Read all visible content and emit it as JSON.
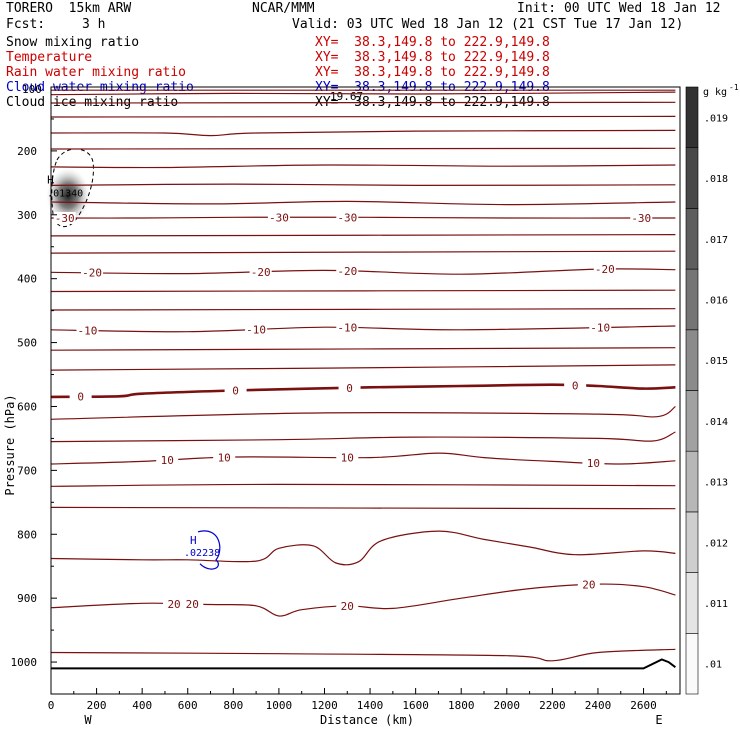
{
  "header": {
    "model": "TORERO  15km ARW",
    "center": "NCAR/MMM",
    "init": "Init: 00 UTC Wed 18 Jan 12",
    "fcst_label": "Fcst:",
    "fcst_value": "3 h",
    "valid": "Valid: 03 UTC Wed 18 Jan 12 (21 CST Tue 17 Jan 12)"
  },
  "fields": [
    {
      "name": "Snow mixing ratio",
      "xy": "XY=  38.3,149.8 to 222.9,149.8",
      "color": "#000000",
      "xy_color": "#cc0000"
    },
    {
      "name": "Temperature",
      "xy": "XY=  38.3,149.8 to 222.9,149.8",
      "color": "#cc0000",
      "xy_color": "#cc0000"
    },
    {
      "name": "Rain water mixing ratio",
      "xy": "XY=  38.3,149.8 to 222.9,149.8",
      "color": "#cc0000",
      "xy_color": "#cc0000"
    },
    {
      "name": "Cloud water mixing ratio",
      "xy": "XY=  38.3,149.8 to 222.9,149.8",
      "color": "#0000cc",
      "xy_color": "#0000cc"
    },
    {
      "name": "Cloud ice mixing ratio",
      "xy": "XY=  38.3,149.8 to 222.9,149.8",
      "color": "#000000",
      "xy_color": "#000000"
    }
  ],
  "overlap_text": {
    "left": "100",
    "right": "19.67"
  },
  "chart_data": {
    "type": "cross-section",
    "xlabel": "Distance (km)",
    "ylabel": "Pressure (hPa)",
    "xlim": [
      0,
      2760
    ],
    "ylim": [
      1050,
      100
    ],
    "xticks": [
      0,
      200,
      400,
      600,
      800,
      1000,
      1200,
      1400,
      1600,
      1800,
      2000,
      2200,
      2400,
      2600
    ],
    "xtick_labels": [
      "0",
      "200",
      "400",
      "600",
      "800",
      "1000",
      "1200",
      "1400",
      "1600",
      "1800",
      "2000",
      "2200",
      "2400",
      "2600"
    ],
    "yticks": [
      200,
      300,
      400,
      500,
      600,
      700,
      800,
      900,
      1000
    ],
    "ytick_labels": [
      "200",
      "300",
      "400",
      "500",
      "600",
      "700",
      "800",
      "900",
      "1000"
    ],
    "x_end_labels": [
      "W",
      "E"
    ],
    "colorbar": {
      "unit": "g kg",
      "unit_exp": "-1",
      "levels": [
        0.01,
        0.011,
        0.012,
        0.013,
        0.014,
        0.015,
        0.016,
        0.017,
        0.018,
        0.019
      ],
      "labels": [
        ".01",
        ".011",
        ".012",
        ".013",
        ".014",
        ".015",
        ".016",
        ".017",
        ".018",
        ".019"
      ]
    },
    "temperature_contours": [
      {
        "p": [
          [
            0,
            105
          ],
          [
            2740,
            105
          ]
        ]
      },
      {
        "p": [
          [
            0,
            112
          ],
          [
            800,
            110
          ],
          [
            1600,
            111
          ],
          [
            2740,
            108
          ]
        ]
      },
      {
        "p": [
          [
            0,
            125
          ],
          [
            2740,
            124
          ]
        ]
      },
      {
        "p": [
          [
            0,
            147
          ],
          [
            2740,
            146
          ]
        ]
      },
      {
        "p": [
          [
            0,
            172
          ],
          [
            500,
            172
          ],
          [
            700,
            176
          ],
          [
            900,
            172
          ],
          [
            1600,
            169
          ],
          [
            2740,
            168
          ]
        ]
      },
      {
        "p": [
          [
            0,
            197
          ],
          [
            2740,
            196
          ]
        ]
      },
      {
        "p": [
          [
            0,
            225
          ],
          [
            500,
            226
          ],
          [
            1200,
            222
          ],
          [
            2000,
            224
          ],
          [
            2740,
            222
          ]
        ]
      },
      {
        "p": [
          [
            0,
            254
          ],
          [
            800,
            252
          ],
          [
            1600,
            254
          ],
          [
            2740,
            253
          ]
        ]
      },
      {
        "p": [
          [
            0,
            280
          ],
          [
            700,
            283
          ],
          [
            1300,
            279
          ],
          [
            2000,
            284
          ],
          [
            2740,
            280
          ]
        ]
      },
      {
        "p": [
          [
            0,
            305
          ],
          [
            400,
            305
          ],
          [
            800,
            304
          ],
          [
            1400,
            304
          ],
          [
            2000,
            305
          ],
          [
            2740,
            305
          ]
        ],
        "label": "-30",
        "at": [
          60,
          1000,
          1300,
          2590
        ]
      },
      {
        "p": [
          [
            0,
            333
          ],
          [
            2740,
            331
          ]
        ]
      },
      {
        "p": [
          [
            0,
            360
          ],
          [
            2740,
            357
          ]
        ]
      },
      {
        "p": [
          [
            0,
            390
          ],
          [
            600,
            392
          ],
          [
            1200,
            387
          ],
          [
            1800,
            393
          ],
          [
            2400,
            385
          ],
          [
            2740,
            386
          ]
        ],
        "label": "-20",
        "at": [
          180,
          920,
          1300,
          2430
        ]
      },
      {
        "p": [
          [
            0,
            420
          ],
          [
            2740,
            418
          ]
        ]
      },
      {
        "p": [
          [
            0,
            449
          ],
          [
            2740,
            447
          ]
        ]
      },
      {
        "p": [
          [
            0,
            480
          ],
          [
            600,
            483
          ],
          [
            1200,
            476
          ],
          [
            1800,
            480
          ],
          [
            2740,
            474
          ]
        ],
        "label": "-10",
        "at": [
          160,
          900,
          1300,
          2410
        ]
      },
      {
        "p": [
          [
            0,
            512
          ],
          [
            2740,
            508
          ]
        ]
      },
      {
        "p": [
          [
            0,
            543
          ],
          [
            1200,
            540
          ],
          [
            2740,
            535
          ]
        ]
      },
      {
        "p": [
          [
            0,
            585
          ],
          [
            300,
            584
          ],
          [
            400,
            580
          ],
          [
            800,
            575
          ],
          [
            1400,
            570
          ],
          [
            1800,
            568
          ],
          [
            2200,
            566
          ],
          [
            2400,
            568
          ],
          [
            2600,
            572
          ],
          [
            2740,
            570
          ]
        ],
        "label": "0",
        "at": [
          130,
          810,
          1310,
          2300
        ],
        "bold": true
      },
      {
        "p": [
          [
            0,
            620
          ],
          [
            1200,
            610
          ],
          [
            2400,
            612
          ],
          [
            2660,
            616
          ],
          [
            2740,
            600
          ]
        ]
      },
      {
        "p": [
          [
            0,
            655
          ],
          [
            1000,
            652
          ],
          [
            1600,
            648
          ],
          [
            2400,
            650
          ],
          [
            2640,
            654
          ],
          [
            2740,
            640
          ]
        ]
      },
      {
        "p": [
          [
            0,
            690
          ],
          [
            400,
            686
          ],
          [
            800,
            679
          ],
          [
            1400,
            680
          ],
          [
            1700,
            673
          ],
          [
            1900,
            680
          ],
          [
            2200,
            686
          ],
          [
            2500,
            690
          ],
          [
            2740,
            685
          ]
        ],
        "label": "10",
        "at": [
          510,
          760,
          1300,
          2380
        ]
      },
      {
        "p": [
          [
            0,
            725
          ],
          [
            1000,
            722
          ],
          [
            2740,
            724
          ]
        ]
      },
      {
        "p": [
          [
            0,
            758
          ],
          [
            2740,
            760
          ]
        ]
      },
      {
        "p": [
          [
            0,
            838
          ],
          [
            400,
            840
          ],
          [
            600,
            840
          ],
          [
            900,
            842
          ],
          [
            1000,
            822
          ],
          [
            1150,
            818
          ],
          [
            1250,
            845
          ],
          [
            1350,
            843
          ],
          [
            1450,
            810
          ],
          [
            1700,
            795
          ],
          [
            1900,
            808
          ],
          [
            2100,
            820
          ],
          [
            2300,
            832
          ],
          [
            2600,
            826
          ],
          [
            2740,
            830
          ]
        ]
      },
      {
        "p": [
          [
            0,
            915
          ],
          [
            400,
            908
          ],
          [
            700,
            910
          ],
          [
            900,
            912
          ],
          [
            1000,
            928
          ],
          [
            1100,
            918
          ],
          [
            1300,
            912
          ],
          [
            1500,
            916
          ],
          [
            1800,
            900
          ],
          [
            2100,
            885
          ],
          [
            2400,
            878
          ],
          [
            2600,
            882
          ],
          [
            2740,
            895
          ]
        ],
        "label": "20",
        "at": [
          540,
          620,
          1300,
          2360
        ]
      },
      {
        "p": [
          [
            0,
            985
          ],
          [
            1000,
            987
          ],
          [
            2000,
            990
          ],
          [
            2200,
            998
          ],
          [
            2400,
            985
          ],
          [
            2740,
            980
          ]
        ]
      }
    ],
    "ground": [
      [
        0,
        1010
      ],
      [
        1000,
        1010
      ],
      [
        2000,
        1010
      ],
      [
        2600,
        1010
      ],
      [
        2680,
        996
      ],
      [
        2710,
        1000
      ],
      [
        2740,
        1008
      ]
    ],
    "snow_max": {
      "label": "H",
      "value": ".01340",
      "x": 75,
      "p": 270
    },
    "cloud_water_max": {
      "label": "H",
      "value": ".02238",
      "x": 610,
      "p": 815
    }
  }
}
